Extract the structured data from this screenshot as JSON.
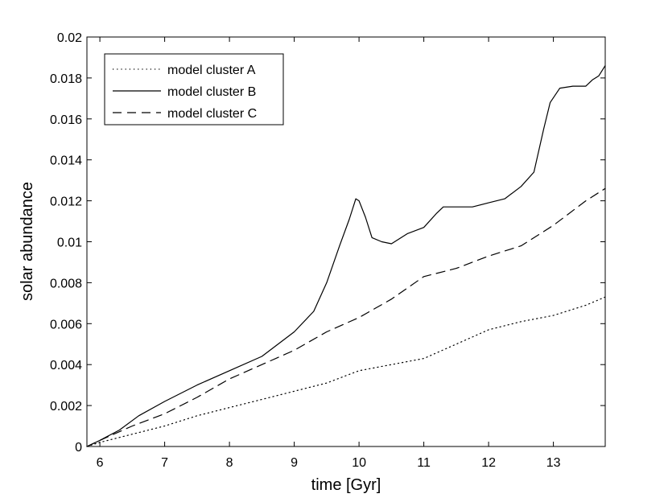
{
  "chart_data": {
    "type": "line",
    "title": "",
    "xlabel": "time [Gyr]",
    "ylabel": "solar abundance",
    "xlim": [
      5.8,
      13.8
    ],
    "ylim": [
      0,
      0.02
    ],
    "grid": false,
    "legend_position": "top-left",
    "x_ticks": [
      6,
      7,
      8,
      9,
      10,
      11,
      12,
      13
    ],
    "y_ticks": [
      0,
      0.002,
      0.004,
      0.006,
      0.008,
      0.01,
      0.012,
      0.014,
      0.016,
      0.018,
      0.02
    ],
    "y_tick_labels": [
      "0",
      "0.002",
      "0.004",
      "0.006",
      "0.008",
      "0.01",
      "0.012",
      "0.014",
      "0.016",
      "0.018",
      "0.02"
    ],
    "series": [
      {
        "name": "model cluster A",
        "style": "dotted",
        "color": "#000000",
        "x": [
          5.8,
          6.0,
          6.5,
          7.0,
          7.5,
          8.0,
          8.5,
          9.0,
          9.5,
          10.0,
          10.5,
          11.0,
          11.5,
          12.0,
          12.5,
          13.0,
          13.5,
          13.8
        ],
        "y": [
          0.0,
          0.0002,
          0.0006,
          0.001,
          0.0015,
          0.0019,
          0.0023,
          0.0027,
          0.0031,
          0.0037,
          0.004,
          0.0043,
          0.005,
          0.0057,
          0.0061,
          0.0064,
          0.0069,
          0.0073
        ]
      },
      {
        "name": "model cluster B",
        "style": "solid",
        "color": "#000000",
        "x": [
          5.8,
          6.0,
          6.3,
          6.6,
          7.0,
          7.5,
          8.0,
          8.5,
          9.0,
          9.3,
          9.5,
          9.7,
          9.85,
          9.95,
          10.0,
          10.1,
          10.2,
          10.35,
          10.5,
          10.75,
          11.0,
          11.2,
          11.3,
          11.5,
          11.75,
          12.0,
          12.25,
          12.5,
          12.7,
          12.85,
          12.95,
          13.1,
          13.3,
          13.5,
          13.6,
          13.7,
          13.8
        ],
        "y": [
          0.0,
          0.0003,
          0.0008,
          0.0015,
          0.0022,
          0.003,
          0.0037,
          0.0044,
          0.0056,
          0.0066,
          0.008,
          0.0098,
          0.0111,
          0.0121,
          0.012,
          0.0112,
          0.0102,
          0.01,
          0.0099,
          0.0104,
          0.0107,
          0.0114,
          0.0117,
          0.0117,
          0.0117,
          0.0119,
          0.0121,
          0.0127,
          0.0134,
          0.0155,
          0.0168,
          0.0175,
          0.0176,
          0.0176,
          0.0179,
          0.0181,
          0.0186
        ]
      },
      {
        "name": "model cluster C",
        "style": "dashed",
        "color": "#000000",
        "x": [
          5.8,
          6.0,
          6.5,
          7.0,
          7.5,
          8.0,
          8.5,
          9.0,
          9.5,
          10.0,
          10.5,
          11.0,
          11.5,
          12.0,
          12.5,
          13.0,
          13.5,
          13.8
        ],
        "y": [
          0.0,
          0.0003,
          0.001,
          0.0016,
          0.0024,
          0.0033,
          0.004,
          0.0047,
          0.0056,
          0.0063,
          0.0072,
          0.0083,
          0.0087,
          0.0093,
          0.0098,
          0.0108,
          0.012,
          0.0126
        ]
      }
    ]
  }
}
